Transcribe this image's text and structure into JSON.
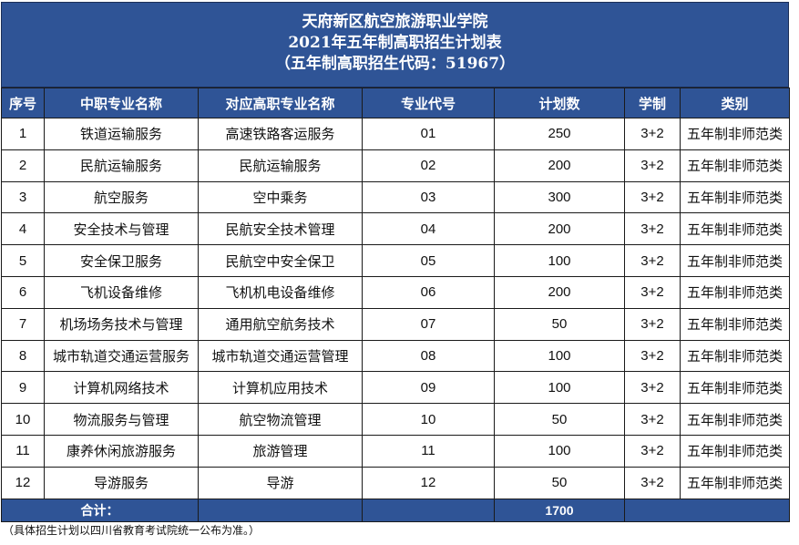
{
  "title": {
    "line1": "天府新区航空旅游职业学院",
    "line2": "2021年五年制高职招生计划表",
    "line3": "（五年制高职招生代码：51967）"
  },
  "headers": [
    "序号",
    "中职专业名称",
    "对应高职专业名称",
    "专业代号",
    "计划数",
    "学制",
    "类别"
  ],
  "rows": [
    [
      "1",
      "铁道运输服务",
      "高速铁路客运服务",
      "01",
      "250",
      "3+2",
      "五年制非师范类"
    ],
    [
      "2",
      "民航运输服务",
      "民航运输服务",
      "02",
      "200",
      "3+2",
      "五年制非师范类"
    ],
    [
      "3",
      "航空服务",
      "空中乘务",
      "03",
      "300",
      "3+2",
      "五年制非师范类"
    ],
    [
      "4",
      "安全技术与管理",
      "民航安全技术管理",
      "04",
      "200",
      "3+2",
      "五年制非师范类"
    ],
    [
      "5",
      "安全保卫服务",
      "民航空中安全保卫",
      "05",
      "100",
      "3+2",
      "五年制非师范类"
    ],
    [
      "6",
      "飞机设备维修",
      "飞机机电设备维修",
      "06",
      "200",
      "3+2",
      "五年制非师范类"
    ],
    [
      "7",
      "机场场务技术与管理",
      "通用航空航务技术",
      "07",
      "50",
      "3+2",
      "五年制非师范类"
    ],
    [
      "8",
      "城市轨道交通运营服务",
      "城市轨道交通运营管理",
      "08",
      "100",
      "3+2",
      "五年制非师范类"
    ],
    [
      "9",
      "计算机网络技术",
      "计算机应用技术",
      "09",
      "100",
      "3+2",
      "五年制非师范类"
    ],
    [
      "10",
      "物流服务与管理",
      "航空物流管理",
      "10",
      "50",
      "3+2",
      "五年制非师范类"
    ],
    [
      "11",
      "康养休闲旅游服务",
      "旅游管理",
      "11",
      "100",
      "3+2",
      "五年制非师范类"
    ],
    [
      "12",
      "导游服务",
      "导游",
      "12",
      "50",
      "3+2",
      "五年制非师范类"
    ]
  ],
  "footer": {
    "label": "合计：",
    "total": "1700"
  },
  "note": "（具体招生计划以四川省教育考试院统一公布为准。）",
  "colors": {
    "header_bg": "#2f5496",
    "header_text": "#ffffff",
    "border": "#1a1a1a"
  }
}
